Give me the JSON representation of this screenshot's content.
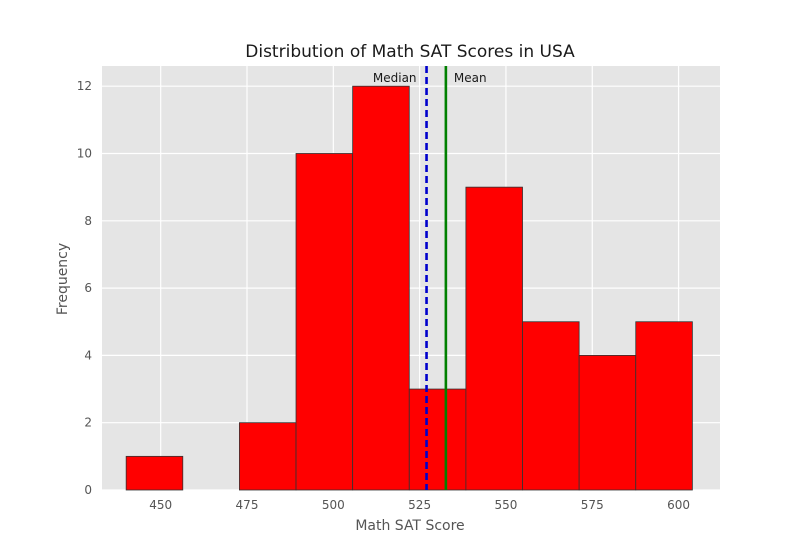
{
  "chart_data": {
    "type": "bar",
    "title": "Distribution of Math SAT Scores in USA",
    "xlabel": "Math SAT Score",
    "ylabel": "Frequency",
    "xlim": [
      433,
      612
    ],
    "ylim": [
      0,
      12.6
    ],
    "x_ticks": [
      450,
      475,
      500,
      525,
      550,
      575,
      600
    ],
    "y_ticks": [
      0,
      2,
      4,
      6,
      8,
      10,
      12
    ],
    "bins": [
      {
        "start": 440.0,
        "end": 456.4,
        "count": 1
      },
      {
        "start": 456.4,
        "end": 472.8,
        "count": 0
      },
      {
        "start": 472.8,
        "end": 489.2,
        "count": 2
      },
      {
        "start": 489.2,
        "end": 505.6,
        "count": 10
      },
      {
        "start": 505.6,
        "end": 522.0,
        "count": 12
      },
      {
        "start": 522.0,
        "end": 538.4,
        "count": 3
      },
      {
        "start": 538.4,
        "end": 554.8,
        "count": 9
      },
      {
        "start": 554.8,
        "end": 571.2,
        "count": 5
      },
      {
        "start": 571.2,
        "end": 587.6,
        "count": 4
      },
      {
        "start": 587.6,
        "end": 604.0,
        "count": 5
      }
    ],
    "bar_color": "#ff0000",
    "bar_edge_color": "#333333",
    "grid": true,
    "background_color": "#e5e5e5",
    "reference_lines": [
      {
        "label": "Median",
        "value": 527,
        "color": "#0000cc",
        "style": "dashed",
        "label_side": "left"
      },
      {
        "label": "Mean",
        "value": 532.6,
        "color": "#008000",
        "style": "solid",
        "label_side": "right"
      }
    ]
  }
}
